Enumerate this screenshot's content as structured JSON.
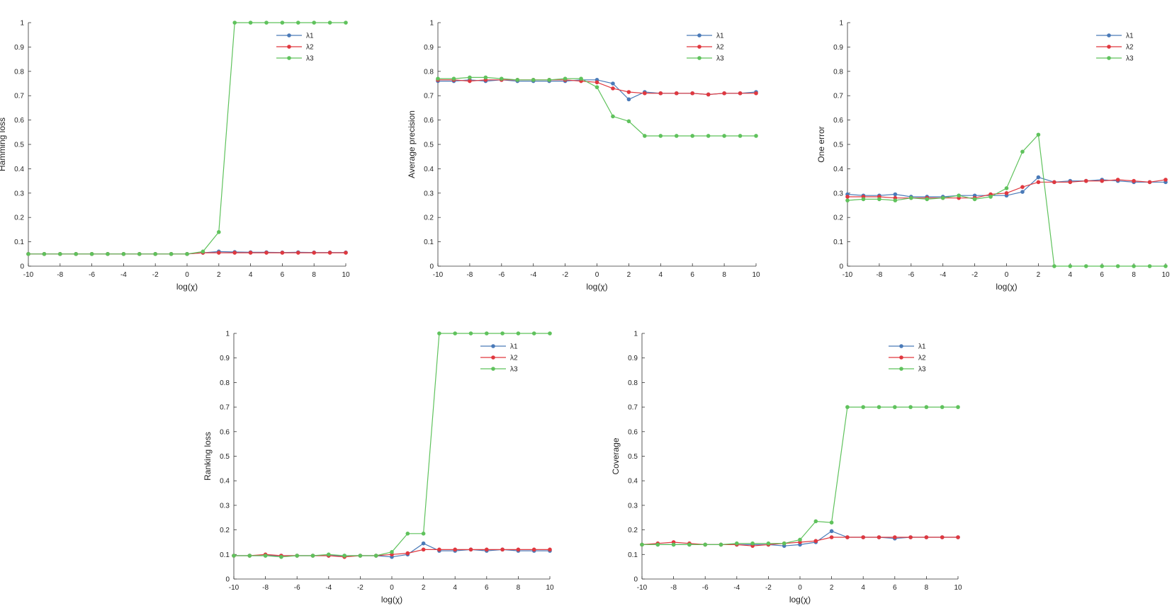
{
  "colors": {
    "lambda1": "#4a7ab8",
    "lambda2": "#e0383f",
    "lambda3": "#5fc25c",
    "axis": "#333333"
  },
  "chart_data": [
    {
      "type": "line",
      "xlabel": "log(χ)",
      "ylabel": "Hamming loss",
      "xlim": [
        -10,
        10
      ],
      "ylim": [
        0,
        1
      ],
      "xticks": [
        "-10",
        "-8",
        "-6",
        "-4",
        "-2",
        "0",
        "2",
        "4",
        "6",
        "8",
        "10"
      ],
      "yticks": [
        "0",
        "0.1",
        "0.2",
        "0.3",
        "0.4",
        "0.5",
        "0.6",
        "0.7",
        "0.8",
        "0.9",
        "1"
      ],
      "legend_position": "top-right",
      "x": [
        -10,
        -9,
        -8,
        -7,
        -6,
        -5,
        -4,
        -3,
        -2,
        -1,
        0,
        1,
        2,
        3,
        4,
        5,
        6,
        7,
        8,
        9,
        10
      ],
      "series": [
        {
          "name": "λ1",
          "values": [
            0.05,
            0.05,
            0.05,
            0.05,
            0.05,
            0.05,
            0.05,
            0.05,
            0.05,
            0.05,
            0.05,
            0.055,
            0.06,
            0.058,
            0.057,
            0.057,
            0.056,
            0.057,
            0.056,
            0.056,
            0.056
          ]
        },
        {
          "name": "λ2",
          "values": [
            0.05,
            0.05,
            0.05,
            0.05,
            0.05,
            0.05,
            0.05,
            0.05,
            0.05,
            0.05,
            0.05,
            0.055,
            0.055,
            0.055,
            0.055,
            0.055,
            0.055,
            0.055,
            0.055,
            0.055,
            0.055
          ]
        },
        {
          "name": "λ3",
          "values": [
            0.05,
            0.05,
            0.05,
            0.05,
            0.05,
            0.05,
            0.05,
            0.05,
            0.05,
            0.05,
            0.05,
            0.06,
            0.14,
            1,
            1,
            1,
            1,
            1,
            1,
            1,
            1
          ]
        }
      ]
    },
    {
      "type": "line",
      "xlabel": "log(χ)",
      "ylabel": "Average precision",
      "xlim": [
        -10,
        10
      ],
      "ylim": [
        0,
        1
      ],
      "xticks": [
        "-10",
        "-8",
        "-6",
        "-4",
        "-2",
        "0",
        "2",
        "4",
        "6",
        "8",
        "10"
      ],
      "yticks": [
        "0",
        "0.1",
        "0.2",
        "0.3",
        "0.4",
        "0.5",
        "0.6",
        "0.7",
        "0.8",
        "0.9",
        "1"
      ],
      "legend_position": "top-right",
      "x": [
        -10,
        -9,
        -8,
        -7,
        -6,
        -5,
        -4,
        -3,
        -2,
        -1,
        0,
        1,
        2,
        3,
        4,
        5,
        6,
        7,
        8,
        9,
        10
      ],
      "series": [
        {
          "name": "λ1",
          "values": [
            0.76,
            0.76,
            0.765,
            0.76,
            0.765,
            0.76,
            0.76,
            0.76,
            0.76,
            0.765,
            0.765,
            0.75,
            0.685,
            0.715,
            0.71,
            0.71,
            0.71,
            0.705,
            0.71,
            0.71,
            0.715
          ]
        },
        {
          "name": "λ2",
          "values": [
            0.765,
            0.765,
            0.76,
            0.765,
            0.765,
            0.765,
            0.765,
            0.765,
            0.765,
            0.76,
            0.755,
            0.73,
            0.715,
            0.71,
            0.71,
            0.71,
            0.71,
            0.705,
            0.71,
            0.71,
            0.71
          ]
        },
        {
          "name": "λ3",
          "values": [
            0.77,
            0.77,
            0.775,
            0.775,
            0.77,
            0.765,
            0.765,
            0.765,
            0.77,
            0.77,
            0.735,
            0.615,
            0.595,
            0.535,
            0.535,
            0.535,
            0.535,
            0.535,
            0.535,
            0.535,
            0.535
          ]
        }
      ]
    },
    {
      "type": "line",
      "xlabel": "log(χ)",
      "ylabel": "One error",
      "xlim": [
        -10,
        10
      ],
      "ylim": [
        0,
        1
      ],
      "xticks": [
        "-10",
        "-8",
        "-6",
        "-4",
        "-2",
        "0",
        "2",
        "4",
        "6",
        "8",
        "10"
      ],
      "yticks": [
        "0",
        "0.1",
        "0.2",
        "0.3",
        "0.4",
        "0.5",
        "0.6",
        "0.7",
        "0.8",
        "0.9",
        "1"
      ],
      "legend_position": "top-right",
      "x": [
        -10,
        -9,
        -8,
        -7,
        -6,
        -5,
        -4,
        -3,
        -2,
        -1,
        0,
        1,
        2,
        3,
        4,
        5,
        6,
        7,
        8,
        9,
        10
      ],
      "series": [
        {
          "name": "λ1",
          "values": [
            0.295,
            0.29,
            0.29,
            0.295,
            0.285,
            0.285,
            0.285,
            0.29,
            0.29,
            0.29,
            0.29,
            0.305,
            0.365,
            0.345,
            0.35,
            0.35,
            0.355,
            0.35,
            0.345,
            0.345,
            0.345
          ]
        },
        {
          "name": "λ2",
          "values": [
            0.285,
            0.285,
            0.285,
            0.28,
            0.28,
            0.28,
            0.28,
            0.28,
            0.28,
            0.295,
            0.3,
            0.325,
            0.345,
            0.345,
            0.345,
            0.35,
            0.35,
            0.355,
            0.35,
            0.345,
            0.355
          ]
        },
        {
          "name": "λ3",
          "values": [
            0.27,
            0.275,
            0.275,
            0.27,
            0.28,
            0.275,
            0.28,
            0.29,
            0.275,
            0.285,
            0.32,
            0.47,
            0.54,
            0,
            0,
            0,
            0,
            0,
            0,
            0,
            0
          ]
        }
      ]
    },
    {
      "type": "line",
      "xlabel": "log(χ)",
      "ylabel": "Ranking loss",
      "xlim": [
        -10,
        10
      ],
      "ylim": [
        0,
        1
      ],
      "xticks": [
        "-10",
        "-8",
        "-6",
        "-4",
        "-2",
        "0",
        "2",
        "4",
        "6",
        "8",
        "10"
      ],
      "yticks": [
        "0",
        "0.1",
        "0.2",
        "0.3",
        "0.4",
        "0.5",
        "0.6",
        "0.7",
        "0.8",
        "0.9",
        "1"
      ],
      "legend_position": "top-right",
      "x": [
        -10,
        -9,
        -8,
        -7,
        -6,
        -5,
        -4,
        -3,
        -2,
        -1,
        0,
        1,
        2,
        3,
        4,
        5,
        6,
        7,
        8,
        9,
        10
      ],
      "series": [
        {
          "name": "λ1",
          "values": [
            0.095,
            0.095,
            0.095,
            0.095,
            0.095,
            0.095,
            0.095,
            0.095,
            0.095,
            0.095,
            0.09,
            0.1,
            0.145,
            0.115,
            0.115,
            0.12,
            0.115,
            0.12,
            0.115,
            0.115,
            0.115
          ]
        },
        {
          "name": "λ2",
          "values": [
            0.095,
            0.095,
            0.1,
            0.095,
            0.095,
            0.095,
            0.095,
            0.09,
            0.095,
            0.095,
            0.1,
            0.105,
            0.12,
            0.12,
            0.12,
            0.12,
            0.12,
            0.12,
            0.12,
            0.12,
            0.12
          ]
        },
        {
          "name": "λ3",
          "values": [
            0.095,
            0.095,
            0.095,
            0.09,
            0.095,
            0.095,
            0.1,
            0.095,
            0.095,
            0.095,
            0.11,
            0.185,
            0.185,
            1,
            1,
            1,
            1,
            1,
            1,
            1,
            1
          ]
        }
      ]
    },
    {
      "type": "line",
      "xlabel": "log(χ)",
      "ylabel": "Coverage",
      "xlim": [
        -10,
        10
      ],
      "ylim": [
        0,
        1
      ],
      "xticks": [
        "-10",
        "-8",
        "-6",
        "-4",
        "-2",
        "0",
        "2",
        "4",
        "6",
        "8",
        "10"
      ],
      "yticks": [
        "0",
        "0.1",
        "0.2",
        "0.3",
        "0.4",
        "0.5",
        "0.6",
        "0.7",
        "0.8",
        "0.9",
        "1"
      ],
      "legend_position": "top-right",
      "x": [
        -10,
        -9,
        -8,
        -7,
        -6,
        -5,
        -4,
        -3,
        -2,
        -1,
        0,
        1,
        2,
        3,
        4,
        5,
        6,
        7,
        8,
        9,
        10
      ],
      "series": [
        {
          "name": "λ1",
          "values": [
            0.14,
            0.14,
            0.14,
            0.14,
            0.14,
            0.14,
            0.14,
            0.14,
            0.14,
            0.135,
            0.14,
            0.15,
            0.195,
            0.17,
            0.17,
            0.17,
            0.165,
            0.17,
            0.17,
            0.17,
            0.17
          ]
        },
        {
          "name": "λ2",
          "values": [
            0.14,
            0.145,
            0.15,
            0.145,
            0.14,
            0.14,
            0.14,
            0.135,
            0.14,
            0.145,
            0.15,
            0.155,
            0.17,
            0.17,
            0.17,
            0.17,
            0.17,
            0.17,
            0.17,
            0.17,
            0.17
          ]
        },
        {
          "name": "λ3",
          "values": [
            0.14,
            0.14,
            0.14,
            0.14,
            0.14,
            0.14,
            0.145,
            0.145,
            0.145,
            0.145,
            0.16,
            0.235,
            0.23,
            0.7,
            0.7,
            0.7,
            0.7,
            0.7,
            0.7,
            0.7,
            0.7
          ]
        }
      ]
    }
  ]
}
